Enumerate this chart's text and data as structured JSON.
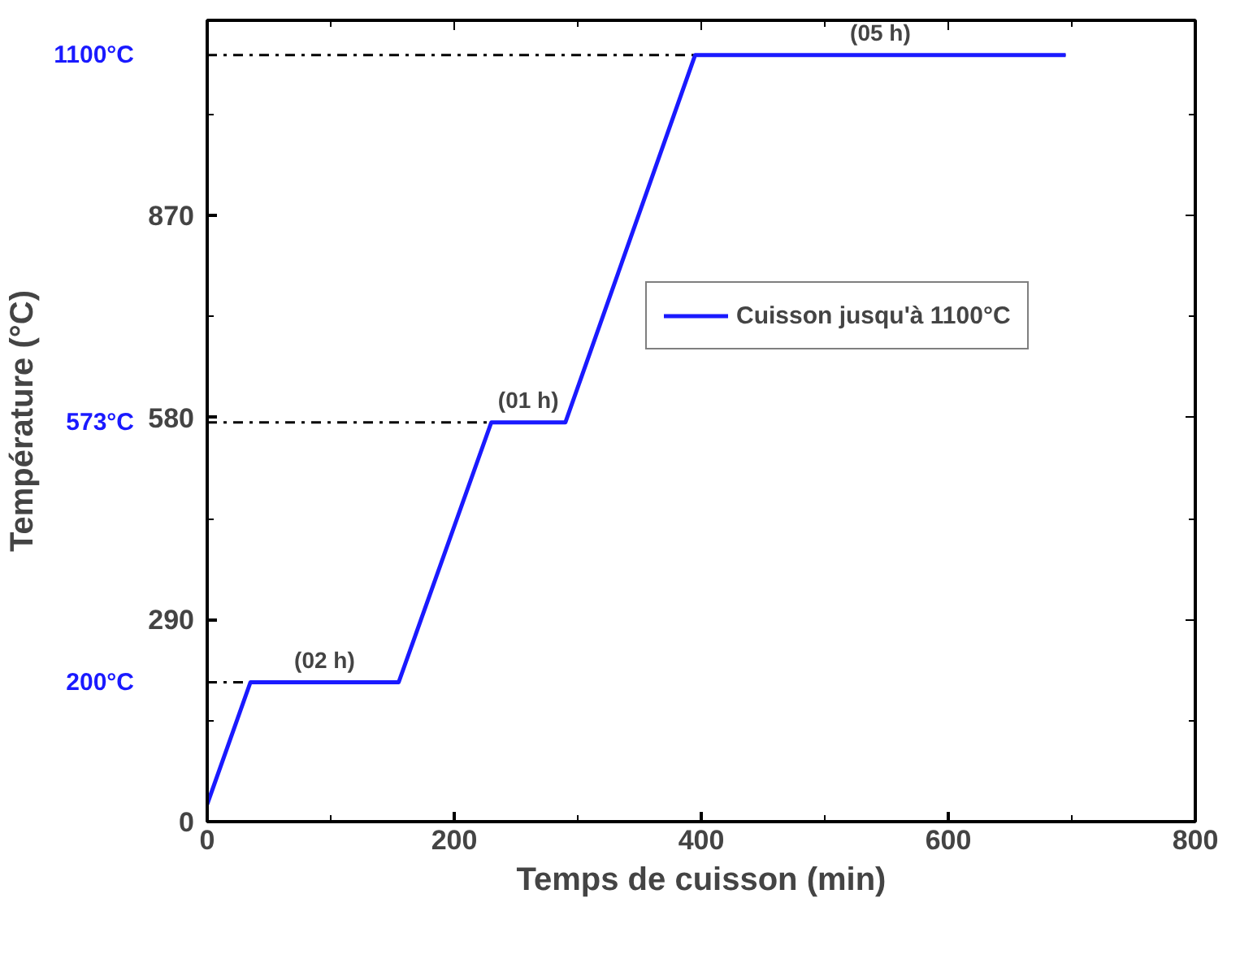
{
  "chart_data": {
    "type": "line",
    "xlabel": "Temps de cuisson (min)",
    "ylabel": "Température (°C)",
    "x": [
      0,
      35,
      155,
      230,
      290,
      395,
      695
    ],
    "series": [
      {
        "name": "Cuisson jusqu'à 1100°C",
        "color": "#1a1aff",
        "values": [
          25,
          200,
          200,
          573,
          573,
          1100,
          1100
        ]
      }
    ],
    "xlim": [
      0,
      800
    ],
    "ylim": [
      0,
      1150
    ],
    "xticks": [
      0,
      200,
      400,
      600,
      800
    ],
    "yticks": [
      0,
      290,
      580,
      870
    ],
    "ref_lines": [
      {
        "axis": "y",
        "value": 200,
        "label": "200°C",
        "line_style": "dashdot",
        "color": "#000000"
      },
      {
        "axis": "y",
        "value": 573,
        "label": "573°C",
        "line_style": "dashdot",
        "color": "#000000"
      },
      {
        "axis": "y",
        "value": 1100,
        "label": "1100°C",
        "line_style": "dashdot",
        "color": "#000000"
      }
    ],
    "annotations": [
      {
        "text": "(02 h)",
        "x": 95,
        "y": 200
      },
      {
        "text": "(01 h)",
        "x": 260,
        "y": 573
      },
      {
        "text": "(05 h)",
        "x": 545,
        "y": 1100
      }
    ],
    "legend": "right",
    "grid": false,
    "marker": "none",
    "line_style": "solid"
  }
}
